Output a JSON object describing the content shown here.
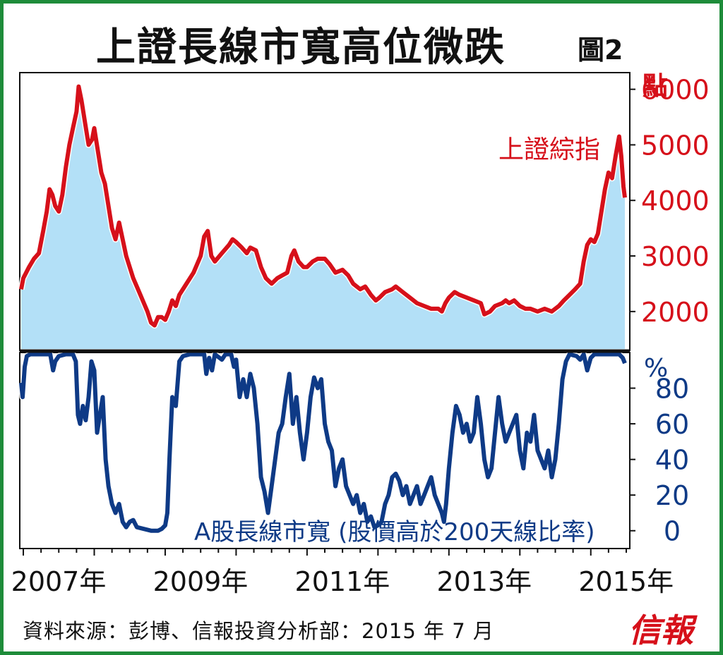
{
  "title": "上證長線市寬高位微跌",
  "figure_label": "圖2",
  "source": "資料來源：彭博、信報投資分析部：2015 年 7 月",
  "logo_text": "信報",
  "colors": {
    "frame": "#1e8c3a",
    "index_line": "#d6101a",
    "index_fill": "#b3e0f7",
    "breadth_line": "#0e3a86"
  },
  "chart_data": [
    {
      "type": "area",
      "series_name": "上證綜指",
      "ylabel": "點",
      "ylim": [
        1300,
        6300
      ],
      "yticks": [
        2000,
        3000,
        4000,
        5000,
        6000
      ],
      "xlim": [
        2006.95,
        2015.55
      ],
      "points": [
        [
          2006.97,
          2400
        ],
        [
          2007.0,
          2600
        ],
        [
          2007.08,
          2800
        ],
        [
          2007.15,
          2950
        ],
        [
          2007.22,
          3050
        ],
        [
          2007.28,
          3450
        ],
        [
          2007.33,
          3800
        ],
        [
          2007.37,
          4200
        ],
        [
          2007.41,
          4100
        ],
        [
          2007.45,
          3900
        ],
        [
          2007.5,
          3800
        ],
        [
          2007.55,
          4100
        ],
        [
          2007.6,
          4600
        ],
        [
          2007.65,
          5000
        ],
        [
          2007.7,
          5300
        ],
        [
          2007.75,
          5600
        ],
        [
          2007.78,
          6050
        ],
        [
          2007.82,
          5800
        ],
        [
          2007.87,
          5400
        ],
        [
          2007.92,
          5000
        ],
        [
          2007.97,
          5100
        ],
        [
          2008.0,
          5300
        ],
        [
          2008.05,
          4900
        ],
        [
          2008.1,
          4500
        ],
        [
          2008.15,
          4300
        ],
        [
          2008.2,
          3900
        ],
        [
          2008.25,
          3500
        ],
        [
          2008.3,
          3300
        ],
        [
          2008.35,
          3600
        ],
        [
          2008.4,
          3300
        ],
        [
          2008.45,
          3000
        ],
        [
          2008.5,
          2800
        ],
        [
          2008.55,
          2600
        ],
        [
          2008.6,
          2450
        ],
        [
          2008.65,
          2300
        ],
        [
          2008.7,
          2150
        ],
        [
          2008.75,
          2000
        ],
        [
          2008.8,
          1800
        ],
        [
          2008.85,
          1750
        ],
        [
          2008.9,
          1900
        ],
        [
          2008.95,
          1900
        ],
        [
          2009.0,
          1850
        ],
        [
          2009.05,
          2000
        ],
        [
          2009.1,
          2200
        ],
        [
          2009.15,
          2100
        ],
        [
          2009.2,
          2300
        ],
        [
          2009.3,
          2500
        ],
        [
          2009.4,
          2700
        ],
        [
          2009.5,
          3000
        ],
        [
          2009.55,
          3350
        ],
        [
          2009.6,
          3450
        ],
        [
          2009.65,
          3000
        ],
        [
          2009.7,
          2900
        ],
        [
          2009.8,
          3050
        ],
        [
          2009.9,
          3200
        ],
        [
          2009.95,
          3300
        ],
        [
          2010.0,
          3250
        ],
        [
          2010.08,
          3150
        ],
        [
          2010.15,
          3050
        ],
        [
          2010.2,
          3150
        ],
        [
          2010.28,
          3100
        ],
        [
          2010.35,
          2800
        ],
        [
          2010.42,
          2600
        ],
        [
          2010.5,
          2500
        ],
        [
          2010.58,
          2600
        ],
        [
          2010.65,
          2650
        ],
        [
          2010.72,
          2700
        ],
        [
          2010.78,
          3000
        ],
        [
          2010.82,
          3100
        ],
        [
          2010.88,
          2900
        ],
        [
          2010.95,
          2800
        ],
        [
          2011.0,
          2800
        ],
        [
          2011.08,
          2900
        ],
        [
          2011.15,
          2950
        ],
        [
          2011.25,
          2950
        ],
        [
          2011.32,
          2850
        ],
        [
          2011.4,
          2700
        ],
        [
          2011.5,
          2750
        ],
        [
          2011.58,
          2650
        ],
        [
          2011.65,
          2500
        ],
        [
          2011.75,
          2400
        ],
        [
          2011.82,
          2450
        ],
        [
          2011.9,
          2300
        ],
        [
          2011.97,
          2200
        ],
        [
          2012.02,
          2250
        ],
        [
          2012.1,
          2350
        ],
        [
          2012.2,
          2400
        ],
        [
          2012.25,
          2450
        ],
        [
          2012.35,
          2350
        ],
        [
          2012.45,
          2250
        ],
        [
          2012.55,
          2150
        ],
        [
          2012.65,
          2100
        ],
        [
          2012.75,
          2050
        ],
        [
          2012.85,
          2050
        ],
        [
          2012.9,
          2000
        ],
        [
          2012.95,
          2150
        ],
        [
          2013.0,
          2250
        ],
        [
          2013.08,
          2350
        ],
        [
          2013.15,
          2300
        ],
        [
          2013.25,
          2250
        ],
        [
          2013.35,
          2200
        ],
        [
          2013.45,
          2150
        ],
        [
          2013.5,
          1950
        ],
        [
          2013.58,
          2000
        ],
        [
          2013.65,
          2100
        ],
        [
          2013.75,
          2150
        ],
        [
          2013.8,
          2200
        ],
        [
          2013.85,
          2150
        ],
        [
          2013.92,
          2200
        ],
        [
          2014.0,
          2100
        ],
        [
          2014.08,
          2050
        ],
        [
          2014.15,
          2050
        ],
        [
          2014.25,
          2000
        ],
        [
          2014.35,
          2050
        ],
        [
          2014.45,
          2000
        ],
        [
          2014.55,
          2100
        ],
        [
          2014.62,
          2200
        ],
        [
          2014.7,
          2300
        ],
        [
          2014.78,
          2400
        ],
        [
          2014.85,
          2500
        ],
        [
          2014.9,
          2900
        ],
        [
          2014.95,
          3200
        ],
        [
          2015.0,
          3300
        ],
        [
          2015.05,
          3250
        ],
        [
          2015.1,
          3400
        ],
        [
          2015.15,
          3800
        ],
        [
          2015.2,
          4200
        ],
        [
          2015.25,
          4500
        ],
        [
          2015.3,
          4400
        ],
        [
          2015.35,
          4800
        ],
        [
          2015.4,
          5150
        ],
        [
          2015.43,
          4800
        ],
        [
          2015.46,
          4250
        ],
        [
          2015.48,
          4050
        ]
      ]
    },
    {
      "type": "line",
      "series_name": "A股長線市寬",
      "label": "A股長線市寬 (股價高於200天線比率)",
      "ylabel": "%",
      "ylim": [
        -10,
        100
      ],
      "yticks": [
        0,
        20,
        40,
        60,
        80
      ],
      "xlim": [
        2006.95,
        2015.55
      ],
      "x_tick_labels": [
        "2007年",
        "2009年",
        "2011年",
        "2013年",
        "2015年"
      ],
      "x_ticks": [
        2007,
        2009,
        2011,
        2013,
        2015
      ],
      "points": [
        [
          2006.97,
          83
        ],
        [
          2006.99,
          75
        ],
        [
          2007.02,
          92
        ],
        [
          2007.05,
          98
        ],
        [
          2007.1,
          99
        ],
        [
          2007.2,
          99
        ],
        [
          2007.3,
          99
        ],
        [
          2007.38,
          99
        ],
        [
          2007.42,
          90
        ],
        [
          2007.45,
          95
        ],
        [
          2007.5,
          98
        ],
        [
          2007.6,
          99
        ],
        [
          2007.7,
          99
        ],
        [
          2007.74,
          95
        ],
        [
          2007.77,
          65
        ],
        [
          2007.8,
          60
        ],
        [
          2007.84,
          70
        ],
        [
          2007.88,
          62
        ],
        [
          2007.92,
          75
        ],
        [
          2007.96,
          95
        ],
        [
          2008.0,
          90
        ],
        [
          2008.04,
          55
        ],
        [
          2008.08,
          65
        ],
        [
          2008.12,
          75
        ],
        [
          2008.16,
          40
        ],
        [
          2008.2,
          25
        ],
        [
          2008.25,
          15
        ],
        [
          2008.3,
          10
        ],
        [
          2008.35,
          15
        ],
        [
          2008.4,
          5
        ],
        [
          2008.45,
          2
        ],
        [
          2008.5,
          5
        ],
        [
          2008.55,
          6
        ],
        [
          2008.6,
          2
        ],
        [
          2008.7,
          1
        ],
        [
          2008.8,
          0
        ],
        [
          2008.9,
          0
        ],
        [
          2008.95,
          1
        ],
        [
          2009.0,
          3
        ],
        [
          2009.03,
          10
        ],
        [
          2009.06,
          40
        ],
        [
          2009.1,
          75
        ],
        [
          2009.15,
          70
        ],
        [
          2009.2,
          95
        ],
        [
          2009.25,
          98
        ],
        [
          2009.35,
          99
        ],
        [
          2009.45,
          99
        ],
        [
          2009.55,
          99
        ],
        [
          2009.58,
          88
        ],
        [
          2009.62,
          97
        ],
        [
          2009.66,
          90
        ],
        [
          2009.7,
          99
        ],
        [
          2009.8,
          96
        ],
        [
          2009.85,
          99
        ],
        [
          2009.93,
          99
        ],
        [
          2009.97,
          92
        ],
        [
          2010.0,
          96
        ],
        [
          2010.05,
          75
        ],
        [
          2010.1,
          85
        ],
        [
          2010.15,
          75
        ],
        [
          2010.2,
          88
        ],
        [
          2010.25,
          80
        ],
        [
          2010.3,
          60
        ],
        [
          2010.35,
          30
        ],
        [
          2010.4,
          22
        ],
        [
          2010.45,
          10
        ],
        [
          2010.5,
          25
        ],
        [
          2010.55,
          40
        ],
        [
          2010.6,
          55
        ],
        [
          2010.65,
          60
        ],
        [
          2010.7,
          75
        ],
        [
          2010.75,
          88
        ],
        [
          2010.8,
          60
        ],
        [
          2010.85,
          75
        ],
        [
          2010.9,
          55
        ],
        [
          2010.95,
          40
        ],
        [
          2011.0,
          55
        ],
        [
          2011.05,
          75
        ],
        [
          2011.1,
          86
        ],
        [
          2011.15,
          80
        ],
        [
          2011.2,
          85
        ],
        [
          2011.25,
          60
        ],
        [
          2011.3,
          50
        ],
        [
          2011.35,
          45
        ],
        [
          2011.4,
          25
        ],
        [
          2011.45,
          35
        ],
        [
          2011.5,
          40
        ],
        [
          2011.55,
          25
        ],
        [
          2011.6,
          20
        ],
        [
          2011.65,
          15
        ],
        [
          2011.7,
          20
        ],
        [
          2011.75,
          10
        ],
        [
          2011.8,
          15
        ],
        [
          2011.85,
          5
        ],
        [
          2011.9,
          8
        ],
        [
          2011.95,
          2
        ],
        [
          2012.0,
          3
        ],
        [
          2012.05,
          5
        ],
        [
          2012.1,
          15
        ],
        [
          2012.15,
          20
        ],
        [
          2012.2,
          30
        ],
        [
          2012.25,
          32
        ],
        [
          2012.3,
          28
        ],
        [
          2012.35,
          20
        ],
        [
          2012.4,
          25
        ],
        [
          2012.45,
          15
        ],
        [
          2012.5,
          20
        ],
        [
          2012.55,
          25
        ],
        [
          2012.6,
          15
        ],
        [
          2012.65,
          20
        ],
        [
          2012.7,
          25
        ],
        [
          2012.75,
          30
        ],
        [
          2012.8,
          20
        ],
        [
          2012.85,
          15
        ],
        [
          2012.9,
          10
        ],
        [
          2012.93,
          5
        ],
        [
          2012.96,
          15
        ],
        [
          2013.0,
          35
        ],
        [
          2013.05,
          55
        ],
        [
          2013.1,
          70
        ],
        [
          2013.15,
          65
        ],
        [
          2013.2,
          55
        ],
        [
          2013.25,
          60
        ],
        [
          2013.3,
          50
        ],
        [
          2013.35,
          55
        ],
        [
          2013.4,
          75
        ],
        [
          2013.45,
          60
        ],
        [
          2013.5,
          40
        ],
        [
          2013.55,
          30
        ],
        [
          2013.6,
          35
        ],
        [
          2013.65,
          55
        ],
        [
          2013.7,
          75
        ],
        [
          2013.75,
          60
        ],
        [
          2013.8,
          50
        ],
        [
          2013.85,
          55
        ],
        [
          2013.9,
          60
        ],
        [
          2013.95,
          65
        ],
        [
          2014.0,
          45
        ],
        [
          2014.05,
          35
        ],
        [
          2014.1,
          55
        ],
        [
          2014.15,
          50
        ],
        [
          2014.2,
          65
        ],
        [
          2014.25,
          45
        ],
        [
          2014.3,
          40
        ],
        [
          2014.35,
          35
        ],
        [
          2014.4,
          45
        ],
        [
          2014.45,
          30
        ],
        [
          2014.5,
          40
        ],
        [
          2014.55,
          60
        ],
        [
          2014.6,
          85
        ],
        [
          2014.65,
          95
        ],
        [
          2014.7,
          99
        ],
        [
          2014.8,
          98
        ],
        [
          2014.85,
          96
        ],
        [
          2014.9,
          99
        ],
        [
          2014.95,
          90
        ],
        [
          2015.0,
          97
        ],
        [
          2015.05,
          99
        ],
        [
          2015.1,
          99
        ],
        [
          2015.2,
          99
        ],
        [
          2015.3,
          99
        ],
        [
          2015.4,
          99
        ],
        [
          2015.45,
          97
        ],
        [
          2015.48,
          94
        ]
      ]
    }
  ]
}
